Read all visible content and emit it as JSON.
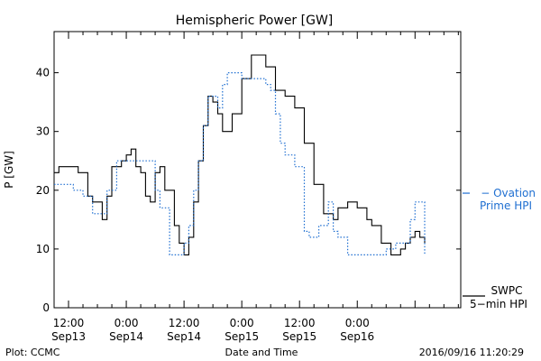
{
  "chart_data": {
    "type": "line",
    "title": "Hemispheric Power [GW]",
    "ylabel": "P [GW]",
    "xlabel": "Date and Time",
    "ylim": [
      0,
      47
    ],
    "yticks": [
      0,
      10,
      20,
      30,
      40
    ],
    "xlim": [
      "2016-09-13 09:00",
      "2016-09-16 21:30"
    ],
    "xticks": [
      {
        "x": "2016-09-13 12:00",
        "time": "12:00",
        "date": "Sep13"
      },
      {
        "x": "2016-09-14 00:00",
        "time": "0:00",
        "date": "Sep14"
      },
      {
        "x": "2016-09-14 12:00",
        "time": "12:00",
        "date": "Sep14"
      },
      {
        "x": "2016-09-15 00:00",
        "time": "0:00",
        "date": "Sep15"
      },
      {
        "x": "2016-09-15 12:00",
        "time": "12:00",
        "date": "Sep15"
      },
      {
        "x": "2016-09-16 00:00",
        "time": "0:00",
        "date": "Sep16"
      }
    ],
    "series": [
      {
        "name": "SWPC 5-min HPI",
        "legend": [
          "SWPC",
          "5−min HPI"
        ],
        "color": "#000000",
        "style": "solid",
        "legend_value": 2,
        "x": [
          "2016-09-13 09:00",
          "2016-09-13 10:00",
          "2016-09-13 11:00",
          "2016-09-13 12:00",
          "2016-09-13 14:00",
          "2016-09-13 16:00",
          "2016-09-13 17:00",
          "2016-09-13 19:00",
          "2016-09-13 20:00",
          "2016-09-13 21:00",
          "2016-09-13 23:00",
          "2016-09-14 00:00",
          "2016-09-14 01:00",
          "2016-09-14 02:00",
          "2016-09-14 03:00",
          "2016-09-14 04:00",
          "2016-09-14 05:00",
          "2016-09-14 06:00",
          "2016-09-14 07:00",
          "2016-09-14 08:00",
          "2016-09-14 10:00",
          "2016-09-14 11:00",
          "2016-09-14 12:00",
          "2016-09-14 13:00",
          "2016-09-14 14:00",
          "2016-09-14 15:00",
          "2016-09-14 16:00",
          "2016-09-14 17:00",
          "2016-09-14 18:00",
          "2016-09-14 19:00",
          "2016-09-14 20:00",
          "2016-09-14 21:00",
          "2016-09-14 22:00",
          "2016-09-15 00:00",
          "2016-09-15 02:00",
          "2016-09-15 03:00",
          "2016-09-15 05:00",
          "2016-09-15 07:00",
          "2016-09-15 08:00",
          "2016-09-15 09:00",
          "2016-09-15 10:00",
          "2016-09-15 11:00",
          "2016-09-15 13:00",
          "2016-09-15 15:00",
          "2016-09-15 17:00",
          "2016-09-15 19:00",
          "2016-09-15 20:00",
          "2016-09-15 22:00",
          "2016-09-16 00:00",
          "2016-09-16 02:00",
          "2016-09-16 03:00",
          "2016-09-16 05:00",
          "2016-09-16 07:00",
          "2016-09-16 08:00",
          "2016-09-16 09:00",
          "2016-09-16 10:00",
          "2016-09-16 11:00",
          "2016-09-16 12:00",
          "2016-09-16 13:00",
          "2016-09-16 14:00"
        ],
        "y": [
          23,
          24,
          24,
          24,
          23,
          19,
          18,
          15,
          19,
          24,
          25,
          26,
          27,
          24,
          23,
          19,
          18,
          23,
          24,
          20,
          14,
          11,
          9,
          12,
          18,
          25,
          31,
          36,
          35,
          33,
          30,
          30,
          33,
          39,
          43,
          43,
          41,
          37,
          37,
          36,
          36,
          34,
          28,
          21,
          16,
          15,
          17,
          18,
          17,
          15,
          14,
          11,
          9,
          9,
          10,
          11,
          12,
          13,
          12,
          11
        ]
      },
      {
        "name": "Ovation Prime HPI",
        "legend": [
          "− Ovation",
          "Prime HPI"
        ],
        "color": "#1f6fd1",
        "style": "dotted",
        "legend_value": 19.5,
        "x": [
          "2016-09-13 09:00",
          "2016-09-13 10:00",
          "2016-09-13 11:00",
          "2016-09-13 13:00",
          "2016-09-13 14:00",
          "2016-09-13 15:00",
          "2016-09-13 17:00",
          "2016-09-13 19:00",
          "2016-09-13 20:00",
          "2016-09-13 22:00",
          "2016-09-14 01:00",
          "2016-09-14 03:00",
          "2016-09-14 04:00",
          "2016-09-14 06:00",
          "2016-09-14 07:00",
          "2016-09-14 09:00",
          "2016-09-14 10:00",
          "2016-09-14 12:00",
          "2016-09-14 13:00",
          "2016-09-14 14:00",
          "2016-09-14 15:00",
          "2016-09-14 16:00",
          "2016-09-14 17:00",
          "2016-09-14 19:00",
          "2016-09-14 20:00",
          "2016-09-14 21:00",
          "2016-09-14 23:00",
          "2016-09-15 00:00",
          "2016-09-15 02:00",
          "2016-09-15 04:00",
          "2016-09-15 05:00",
          "2016-09-15 06:00",
          "2016-09-15 07:00",
          "2016-09-15 08:00",
          "2016-09-15 09:00",
          "2016-09-15 11:00",
          "2016-09-15 13:00",
          "2016-09-15 14:00",
          "2016-09-15 16:00",
          "2016-09-15 17:00",
          "2016-09-15 18:00",
          "2016-09-15 19:00",
          "2016-09-15 20:00",
          "2016-09-15 22:00",
          "2016-09-16 00:00",
          "2016-09-16 03:00",
          "2016-09-16 05:00",
          "2016-09-16 06:00",
          "2016-09-16 07:00",
          "2016-09-16 08:00",
          "2016-09-16 10:00",
          "2016-09-16 11:00",
          "2016-09-16 12:00",
          "2016-09-16 14:00"
        ],
        "y": [
          21,
          21,
          21,
          20,
          20,
          19,
          16,
          16,
          20,
          25,
          25,
          25,
          25,
          20,
          17,
          9,
          9,
          11,
          14,
          20,
          25,
          31,
          36,
          34,
          38,
          40,
          40,
          39,
          39,
          39,
          38,
          37,
          33,
          28,
          26,
          24,
          13,
          12,
          14,
          14,
          18,
          13,
          12,
          9,
          9,
          9,
          9,
          10,
          10,
          11,
          11,
          15,
          18,
          9
        ]
      }
    ],
    "annotations": {
      "credit": "Plot: CCMC",
      "timestamp": "2016/09/16 11:20:29"
    }
  }
}
